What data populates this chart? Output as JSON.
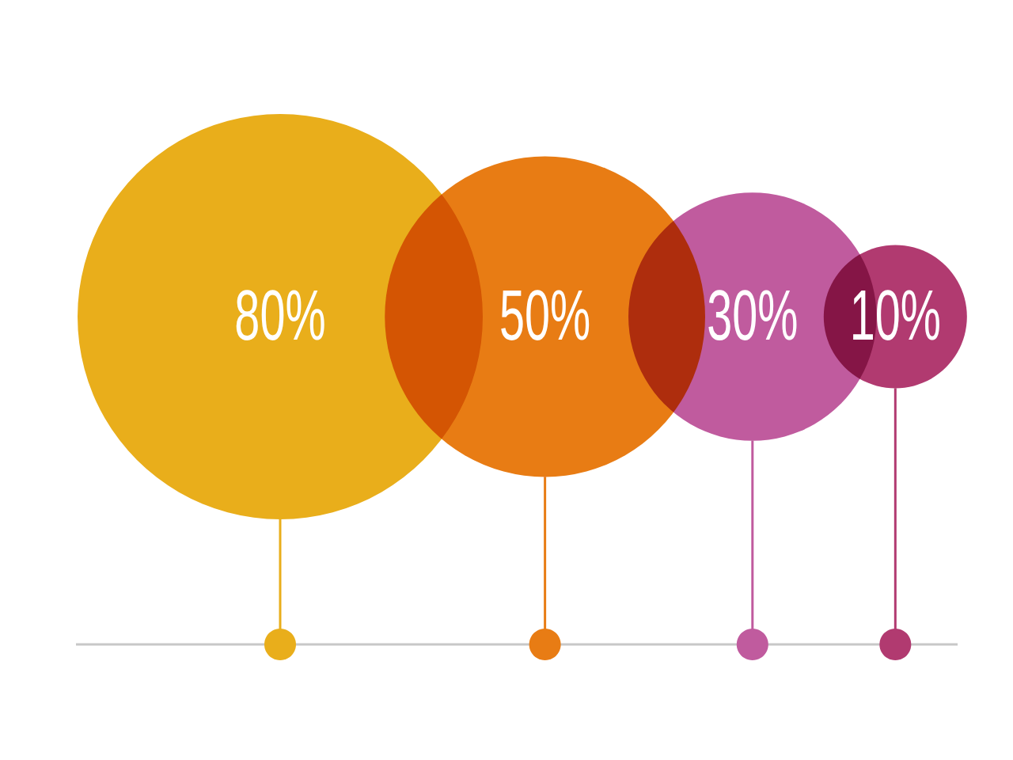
{
  "chart_data": {
    "type": "other",
    "values": [
      80,
      50,
      30,
      10
    ],
    "value_labels": [
      "80%",
      "50%",
      "30%",
      "10%"
    ],
    "colors": [
      "#e9ae1b",
      "#e87c14",
      "#c05b9e",
      "#b13a70"
    ]
  }
}
